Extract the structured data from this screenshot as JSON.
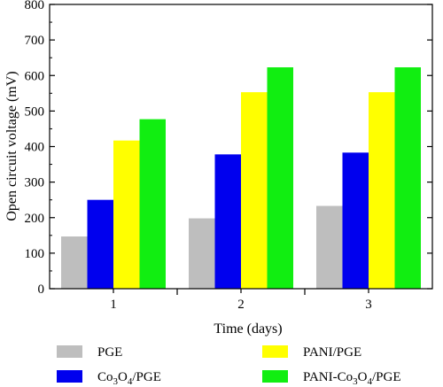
{
  "chart_data": {
    "type": "bar",
    "xlabel": "Time (days)",
    "ylabel": "Open circuit voltage (mV)",
    "categories": [
      "1",
      "2",
      "3"
    ],
    "ylim": [
      0,
      800
    ],
    "yticks": [
      0,
      100,
      200,
      300,
      400,
      500,
      600,
      700,
      800
    ],
    "series": [
      {
        "name": "PGE",
        "name_parts": [
          {
            "t": "PGE"
          }
        ],
        "color": "#bebebe",
        "values": [
          147,
          198,
          233
        ]
      },
      {
        "name": "Co3O4/PGE",
        "name_parts": [
          {
            "t": "Co"
          },
          {
            "t": "3",
            "sub": true
          },
          {
            "t": "O"
          },
          {
            "t": "4",
            "sub": true
          },
          {
            "t": "/PGE"
          }
        ],
        "color": "#0000ee",
        "values": [
          250,
          378,
          383
        ]
      },
      {
        "name": "PANI/PGE",
        "name_parts": [
          {
            "t": "PANI/PGE"
          }
        ],
        "color": "#ffff00",
        "values": [
          417,
          553,
          553
        ]
      },
      {
        "name": "PANI-Co3O4/PGE",
        "name_parts": [
          {
            "t": "PANI-Co"
          },
          {
            "t": "3",
            "sub": true
          },
          {
            "t": "O"
          },
          {
            "t": "4",
            "sub": true
          },
          {
            "t": "/PGE"
          }
        ],
        "color": "#11ee11",
        "values": [
          477,
          623,
          623
        ]
      }
    ],
    "legend_position": "bottom",
    "grid": false
  }
}
